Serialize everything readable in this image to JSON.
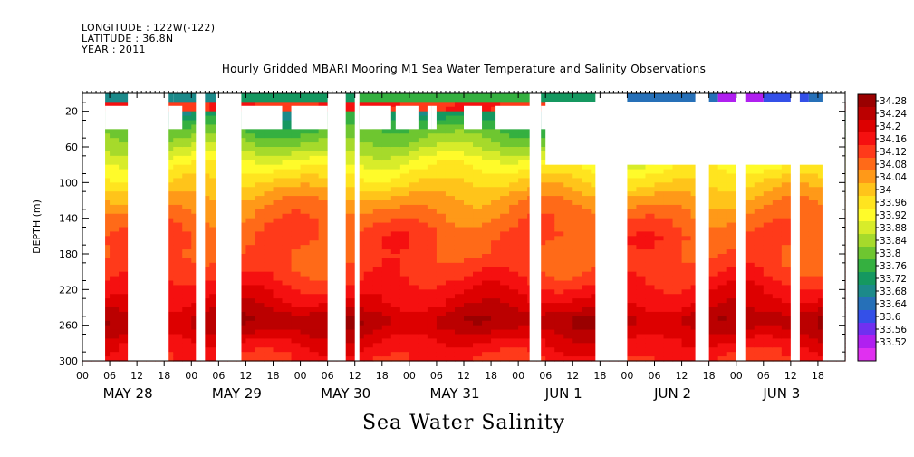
{
  "header": {
    "longitude": "LONGITUDE : 122W(-122)",
    "latitude": "LATITUDE : 36.8N",
    "year": "YEAR : 2011"
  },
  "chart_data": {
    "type": "heatmap",
    "title": "Hourly Gridded MBARI Mooring M1 Sea Water Temperature and Salinity Observations",
    "xlabel": "Sea Water Salinity",
    "ylabel": "DEPTH (m)",
    "x_range_hours": [
      0,
      168
    ],
    "x_tick_labels": [
      "00",
      "06",
      "12",
      "18",
      "00",
      "06",
      "12",
      "18",
      "00",
      "06",
      "12",
      "18",
      "00",
      "06",
      "12",
      "18",
      "00",
      "06",
      "12",
      "18",
      "00",
      "06",
      "12",
      "18",
      "00",
      "06",
      "12",
      "18"
    ],
    "x_day_labels": [
      "MAY 28",
      "MAY 29",
      "MAY 30",
      "MAY 31",
      "JUN  1",
      "JUN  2",
      "JUN  3"
    ],
    "y_range": [
      300,
      0
    ],
    "y_ticks": [
      20,
      60,
      100,
      140,
      180,
      220,
      260,
      300
    ],
    "colorbar": {
      "labels": [
        "34.28",
        "34.24",
        "34.2",
        "34.16",
        "34.12",
        "34.08",
        "34.04",
        "34",
        "33.96",
        "33.92",
        "33.88",
        "33.84",
        "33.8",
        "33.76",
        "33.72",
        "33.68",
        "33.64",
        "33.6",
        "33.56",
        "33.52"
      ],
      "colors": [
        "#9a0000",
        "#bb0000",
        "#dd0000",
        "#f51010",
        "#ff3a1a",
        "#ff6a18",
        "#ff9918",
        "#ffc41a",
        "#ffe41f",
        "#fffb2a",
        "#d8ec2a",
        "#a6da2b",
        "#6ec630",
        "#35b040",
        "#159860",
        "#1c8a8a",
        "#2670b8",
        "#3450e8",
        "#7030f0",
        "#b020f0",
        "#e030f0"
      ]
    },
    "profile": [
      {
        "depth": 20,
        "value": 33.72
      },
      {
        "depth": 40,
        "value": 33.8
      },
      {
        "depth": 60,
        "value": 33.86
      },
      {
        "depth": 80,
        "value": 33.94
      },
      {
        "depth": 100,
        "value": 34.0
      },
      {
        "depth": 120,
        "value": 34.06
      },
      {
        "depth": 140,
        "value": 34.1
      },
      {
        "depth": 160,
        "value": 34.13
      },
      {
        "depth": 180,
        "value": 34.12
      },
      {
        "depth": 200,
        "value": 34.14
      },
      {
        "depth": 220,
        "value": 34.18
      },
      {
        "depth": 240,
        "value": 34.22
      },
      {
        "depth": 250,
        "value": 34.26
      },
      {
        "depth": 260,
        "value": 34.26
      },
      {
        "depth": 280,
        "value": 34.2
      },
      {
        "depth": 300,
        "value": 34.16
      }
    ],
    "missing_full": [
      [
        0,
        5
      ],
      [
        10,
        19
      ],
      [
        25,
        27
      ],
      [
        29.5,
        35
      ],
      [
        54,
        58
      ],
      [
        60,
        61
      ],
      [
        98.5,
        101
      ],
      [
        113,
        120
      ],
      [
        135,
        138
      ],
      [
        144,
        146
      ],
      [
        156,
        158
      ],
      [
        163,
        168
      ]
    ],
    "missing_below_40": [
      [
        29.5,
        35
      ]
    ],
    "missing_to_80": [
      [
        102,
        168
      ]
    ],
    "missing_to_40": [
      [
        5,
        12
      ],
      [
        12,
        16
      ],
      [
        19,
        22
      ],
      [
        35,
        44
      ],
      [
        46,
        54
      ],
      [
        61,
        68
      ],
      [
        69,
        74
      ],
      [
        76,
        77
      ],
      [
        77,
        78
      ],
      [
        84,
        88
      ],
      [
        91,
        99
      ],
      [
        101,
        104
      ]
    ],
    "surface": [
      {
        "start": 5,
        "end": 20,
        "value": 33.72
      },
      {
        "start": 20,
        "end": 30,
        "value": 33.7
      },
      {
        "start": 30,
        "end": 60,
        "value": 33.76
      },
      {
        "start": 60,
        "end": 100,
        "value": 33.8
      },
      {
        "start": 100,
        "end": 120,
        "value": 33.76
      },
      {
        "start": 120,
        "end": 140,
        "value": 33.66
      },
      {
        "start": 140,
        "end": 150,
        "value": 33.56
      },
      {
        "start": 150,
        "end": 160,
        "value": 33.62
      },
      {
        "start": 160,
        "end": 168,
        "value": 33.66
      }
    ]
  }
}
